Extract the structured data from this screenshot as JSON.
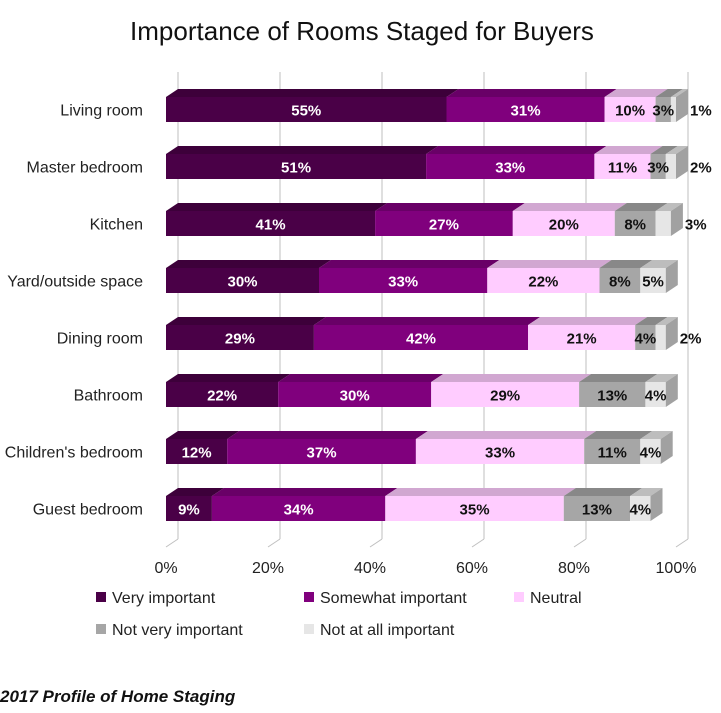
{
  "chart_data": {
    "type": "bar",
    "orientation": "horizontal",
    "stacked": true,
    "title": "Importance of Rooms Staged for Buyers",
    "categories": [
      "Living room",
      "Master bedroom",
      "Kitchen",
      "Yard/outside space",
      "Dining room",
      "Bathroom",
      "Children's bedroom",
      "Guest bedroom"
    ],
    "series": [
      {
        "name": "Very important",
        "color": "#4a0047",
        "values": [
          55,
          51,
          41,
          30,
          29,
          22,
          12,
          9
        ]
      },
      {
        "name": "Somewhat important",
        "color": "#80007d",
        "values": [
          31,
          33,
          27,
          33,
          42,
          30,
          37,
          34
        ]
      },
      {
        "name": "Neutral",
        "color": "#ffccff",
        "values": [
          10,
          11,
          20,
          22,
          21,
          29,
          33,
          35
        ]
      },
      {
        "name": "Not very important",
        "color": "#a6a6a6",
        "values": [
          3,
          3,
          8,
          8,
          4,
          13,
          11,
          13
        ]
      },
      {
        "name": "Not at all important",
        "color": "#e6e6e6",
        "values": [
          1,
          2,
          3,
          5,
          2,
          4,
          4,
          4
        ]
      }
    ],
    "xlim": [
      0,
      100
    ],
    "x_ticks": [
      "0%",
      "20%",
      "40%",
      "60%",
      "80%",
      "100%"
    ],
    "grid": true,
    "legend_position": "bottom"
  },
  "source": "2017 Profile of Home Staging"
}
